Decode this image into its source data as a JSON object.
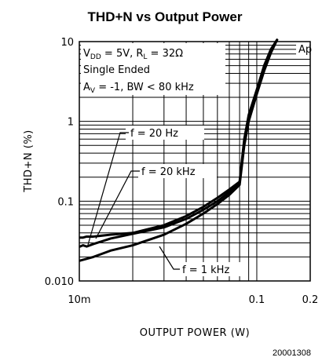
{
  "chart_data": {
    "type": "line",
    "title": "THD+N vs Output Power",
    "xlabel": "OUTPUT POWER (W)",
    "ylabel": "THD+N (%)",
    "x_scale": "log",
    "y_scale": "log",
    "xlim": [
      0.01,
      0.2
    ],
    "ylim": [
      0.01,
      10
    ],
    "x_ticks": [
      {
        "value": 0.01,
        "label": "10m"
      },
      {
        "value": 0.1,
        "label": "0.1"
      },
      {
        "value": 0.2,
        "label": "0.2"
      }
    ],
    "y_ticks": [
      {
        "value": 10,
        "label": "10"
      },
      {
        "value": 1,
        "label": "1"
      },
      {
        "value": 0.1,
        "label": "0.1"
      },
      {
        "value": 0.01,
        "label": "0.010"
      }
    ],
    "grid": true,
    "conditions": [
      "V_DD = 5V, R_L = 32Ω",
      "Single Ended",
      "A_V = -1, BW < 80 kHz"
    ],
    "watermark": "Ap",
    "series": [
      {
        "name": "f = 20 Hz",
        "x": [
          0.0101,
          0.0105,
          0.011,
          0.012,
          0.015,
          0.02,
          0.03,
          0.04,
          0.05,
          0.06,
          0.07,
          0.08,
          0.085,
          0.09,
          0.1,
          0.11,
          0.12,
          0.13
        ],
        "y": [
          0.035,
          0.035,
          0.036,
          0.036,
          0.038,
          0.04,
          0.05,
          0.065,
          0.085,
          0.11,
          0.14,
          0.175,
          0.6,
          1.2,
          2.5,
          5,
          8,
          10.5
        ]
      },
      {
        "name": "f = 20 kHz",
        "x": [
          0.0101,
          0.0105,
          0.011,
          0.012,
          0.015,
          0.02,
          0.03,
          0.04,
          0.05,
          0.06,
          0.07,
          0.08,
          0.085,
          0.09,
          0.1,
          0.11,
          0.12,
          0.13
        ],
        "y": [
          0.027,
          0.028,
          0.027,
          0.029,
          0.034,
          0.039,
          0.047,
          0.06,
          0.078,
          0.1,
          0.13,
          0.17,
          0.55,
          1.1,
          2.3,
          4.6,
          7.5,
          10.5
        ]
      },
      {
        "name": "f = 1 kHz",
        "x": [
          0.0101,
          0.012,
          0.015,
          0.02,
          0.03,
          0.04,
          0.05,
          0.06,
          0.07,
          0.08,
          0.085,
          0.09,
          0.1,
          0.11,
          0.12,
          0.13
        ],
        "y": [
          0.018,
          0.02,
          0.024,
          0.028,
          0.038,
          0.052,
          0.07,
          0.092,
          0.12,
          0.16,
          0.5,
          1.0,
          2.2,
          4.3,
          7.2,
          10.5
        ]
      }
    ],
    "annotations": [
      {
        "text": "f = 20 Hz",
        "target": {
          "x": 0.0105,
          "y": 0.028
        }
      },
      {
        "text": "f = 20 kHz",
        "target": {
          "x": 0.0108,
          "y": 0.035
        }
      },
      {
        "text": "f = 1 kHz",
        "target": {
          "x": 0.0185,
          "y": 0.029
        }
      }
    ]
  },
  "figure_id": "20001308"
}
